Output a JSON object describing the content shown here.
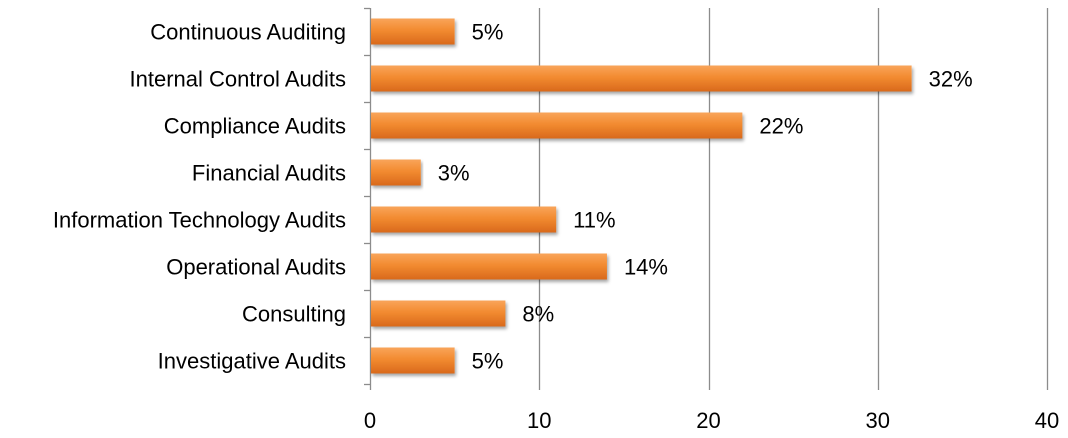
{
  "chart_data": {
    "type": "bar",
    "orientation": "horizontal",
    "categories": [
      "Continuous Auditing",
      "Internal Control Audits",
      "Compliance Audits",
      "Financial Audits",
      "Information Technology Audits",
      "Operational Audits",
      "Consulting",
      "Investigative Audits"
    ],
    "values": [
      5,
      32,
      22,
      3,
      11,
      14,
      8,
      5
    ],
    "data_labels": [
      "5%",
      "32%",
      "22%",
      "3%",
      "11%",
      "14%",
      "8%",
      "5%"
    ],
    "title": "",
    "xlabel": "",
    "ylabel": "",
    "xlim": [
      0,
      40
    ],
    "x_ticks": [
      0,
      10,
      20,
      30,
      40
    ],
    "x_tick_labels": [
      "0",
      "10",
      "20",
      "30",
      "40"
    ],
    "grid": "vertical",
    "legend": "none",
    "bar_color": "#F28B30",
    "bar_color_dark": "#D9691C",
    "bar_color_light": "#F9A45A",
    "grid_color": "#8C8C8C"
  }
}
